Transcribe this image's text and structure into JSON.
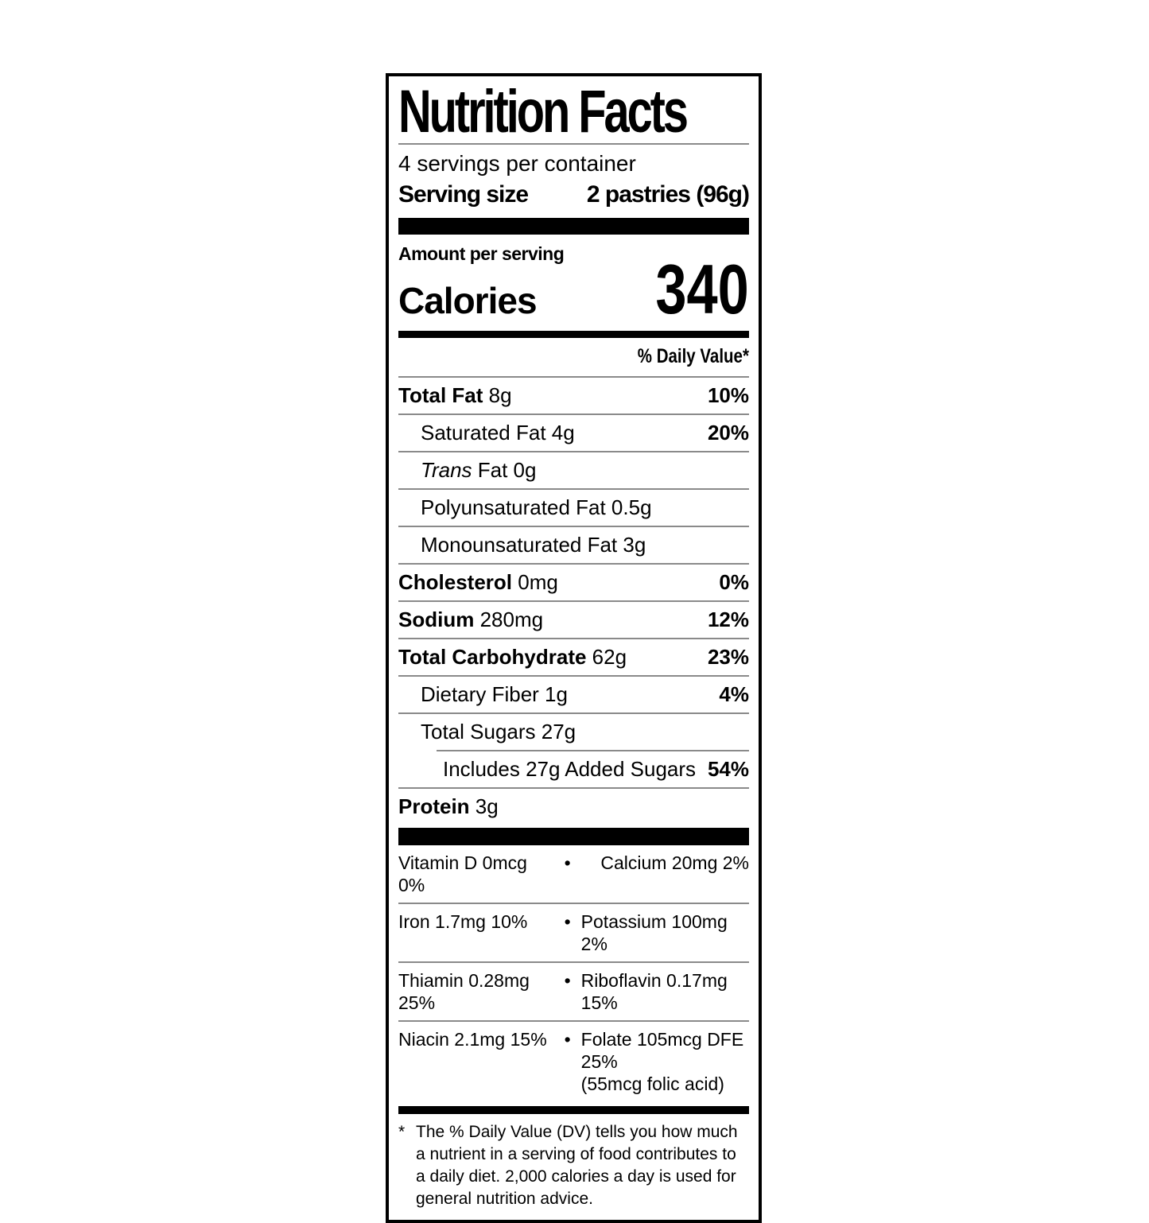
{
  "colors": {
    "text": "#000000",
    "background": "#ffffff"
  },
  "label": {
    "title": "Nutrition Facts",
    "servings_per_container": "4 servings per container",
    "serving_size_label": "Serving size",
    "serving_size_value": "2 pastries (96g)",
    "amount_per_serving": "Amount per serving",
    "calories_label": "Calories",
    "calories_value": "340",
    "daily_value_header": "% Daily Value*",
    "nutrients": [
      {
        "name": "Total Fat",
        "bold": true,
        "italic": false,
        "amount": "8g",
        "dv": "10%",
        "indent": 0,
        "rule_indent": 0
      },
      {
        "name": "Saturated Fat",
        "bold": false,
        "italic": false,
        "amount": "4g",
        "dv": "20%",
        "indent": 1,
        "rule_indent": 0
      },
      {
        "name": "Trans",
        "bold": false,
        "italic": true,
        "amount": "Fat 0g",
        "dv": "",
        "indent": 1,
        "rule_indent": 0
      },
      {
        "name": "Polyunsaturated Fat",
        "bold": false,
        "italic": false,
        "amount": "0.5g",
        "dv": "",
        "indent": 1,
        "rule_indent": 0
      },
      {
        "name": "Monounsaturated Fat",
        "bold": false,
        "italic": false,
        "amount": "3g",
        "dv": "",
        "indent": 1,
        "rule_indent": 0
      },
      {
        "name": "Cholesterol",
        "bold": true,
        "italic": false,
        "amount": "0mg",
        "dv": "0%",
        "indent": 0,
        "rule_indent": 0
      },
      {
        "name": "Sodium",
        "bold": true,
        "italic": false,
        "amount": "280mg",
        "dv": "12%",
        "indent": 0,
        "rule_indent": 0
      },
      {
        "name": "Total Carbohydrate",
        "bold": true,
        "italic": false,
        "amount": "62g",
        "dv": "23%",
        "indent": 0,
        "rule_indent": 0
      },
      {
        "name": "Dietary Fiber",
        "bold": false,
        "italic": false,
        "amount": "1g",
        "dv": "4%",
        "indent": 1,
        "rule_indent": 0
      },
      {
        "name": "Total Sugars",
        "bold": false,
        "italic": false,
        "amount": "27g",
        "dv": "",
        "indent": 1,
        "rule_indent": 0
      },
      {
        "name": "Includes 27g Added Sugars",
        "bold": false,
        "italic": false,
        "amount": "",
        "dv": "54%",
        "indent": 2,
        "rule_indent": 48
      },
      {
        "name": "Protein",
        "bold": true,
        "italic": false,
        "amount": "3g",
        "dv": "",
        "indent": 0,
        "rule_indent": 0
      }
    ],
    "vitamins": [
      {
        "left": "Vitamin D 0mcg 0%",
        "bullet": "•",
        "right": "Calcium 20mg 2%",
        "right2": ""
      },
      {
        "left": "Iron 1.7mg 10%",
        "bullet": "•",
        "right": "Potassium 100mg 2%",
        "right2": ""
      },
      {
        "left": "Thiamin 0.28mg 25%",
        "bullet": "•",
        "right": "Riboflavin 0.17mg 15%",
        "right2": ""
      },
      {
        "left": "Niacin 2.1mg 15%",
        "bullet": "•",
        "right": "Folate 105mcg DFE 25%",
        "right2": "(55mcg folic acid)"
      }
    ],
    "footnote_asterisk": "*",
    "footnote_text": "The % Daily Value (DV) tells you how much a nutrient in a serving of food contributes to a daily diet. 2,000 calories a day is used for general nutrition advice."
  }
}
